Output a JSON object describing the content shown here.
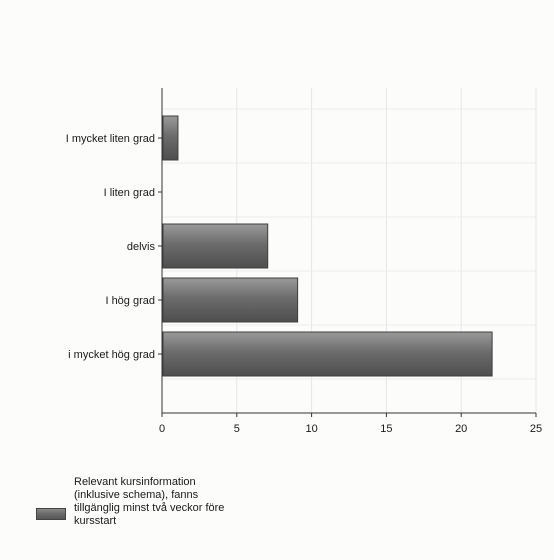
{
  "chart_data": {
    "type": "bar",
    "orientation": "horizontal",
    "categories": [
      "I mycket liten grad",
      "I liten grad",
      "delvis",
      "I hög grad",
      "i mycket hög grad"
    ],
    "series": [
      {
        "name": "Relevant kursinformation (inklusive schema), fanns tillgänglig minst två veckor före kursstart",
        "values": [
          1,
          0,
          7,
          9,
          22
        ]
      }
    ],
    "xticks": [
      "0",
      "5",
      "10",
      "15",
      "20",
      "25"
    ],
    "xlim": [
      0,
      25
    ],
    "grid": true,
    "legend_position": "bottom-left",
    "bar_color": "#6f6f6f"
  }
}
